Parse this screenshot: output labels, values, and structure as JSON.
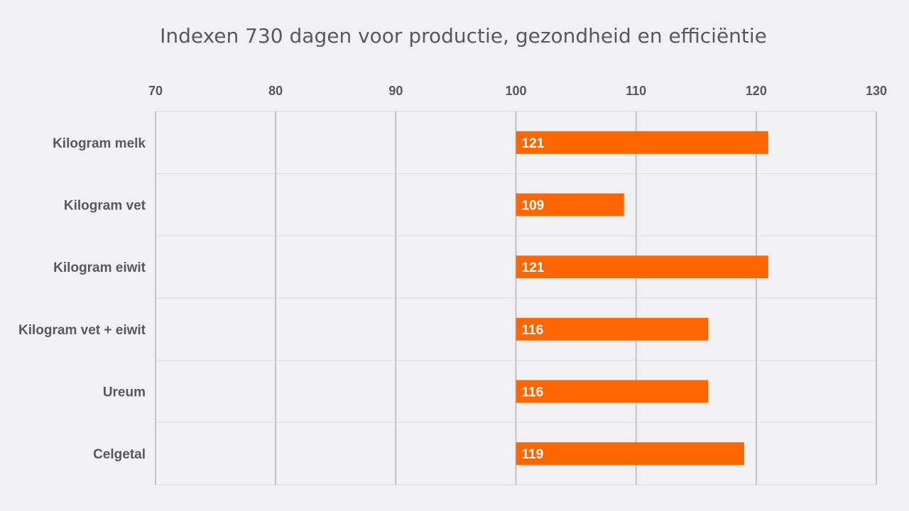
{
  "chart_data": {
    "type": "bar",
    "orientation": "horizontal",
    "title": "Indexen 730 dagen voor productie, gezondheid en efficiëntie",
    "categories": [
      "Kilogram melk",
      "Kilogram vet",
      "Kilogram eiwit",
      "Kilogram vet + eiwit",
      "Ureum",
      "Celgetal"
    ],
    "values": [
      121,
      109,
      121,
      116,
      116,
      119
    ],
    "data_labels": [
      "121",
      "109",
      "121",
      "116",
      "116",
      "119"
    ],
    "base": 100,
    "xlim": [
      70,
      130
    ],
    "x_ticks": [
      70,
      80,
      90,
      100,
      110,
      120,
      130
    ],
    "x_axis_position": "top",
    "grid": true,
    "legend": "none",
    "bar_color": "#ff6600"
  }
}
